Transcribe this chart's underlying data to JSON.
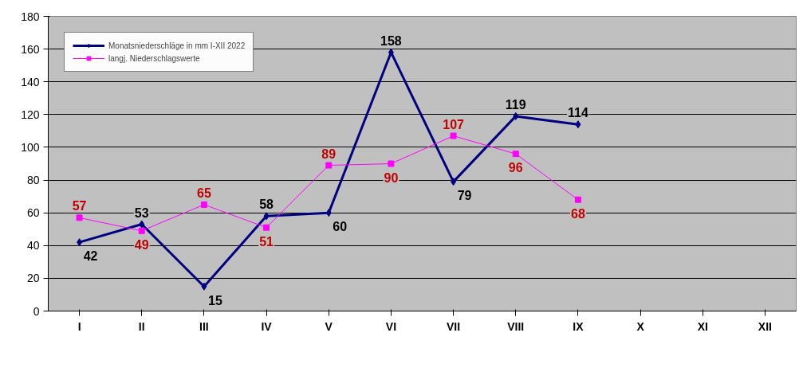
{
  "chart_data": {
    "type": "line",
    "categories": [
      "I",
      "II",
      "III",
      "IV",
      "V",
      "VI",
      "VII",
      "VIII",
      "IX",
      "X",
      "XI",
      "XII"
    ],
    "series": [
      {
        "name": "Monatsniederschläge in mm I-XII 2022",
        "color": "#000080",
        "marker": "diamond",
        "values": [
          42,
          53,
          15,
          58,
          60,
          158,
          79,
          119,
          114,
          null,
          null,
          null
        ]
      },
      {
        "name": "langj. Niederschlagswerte",
        "color": "#ff00ff",
        "marker": "square",
        "values": [
          57,
          49,
          65,
          51,
          89,
          90,
          107,
          96,
          68,
          null,
          null,
          null
        ]
      }
    ],
    "ylim": [
      0,
      180
    ],
    "yticks": [
      0,
      20,
      40,
      60,
      80,
      100,
      120,
      140,
      160,
      180
    ],
    "grid": "y",
    "legend": "top left",
    "data_labels": true,
    "line_style": "solid"
  }
}
